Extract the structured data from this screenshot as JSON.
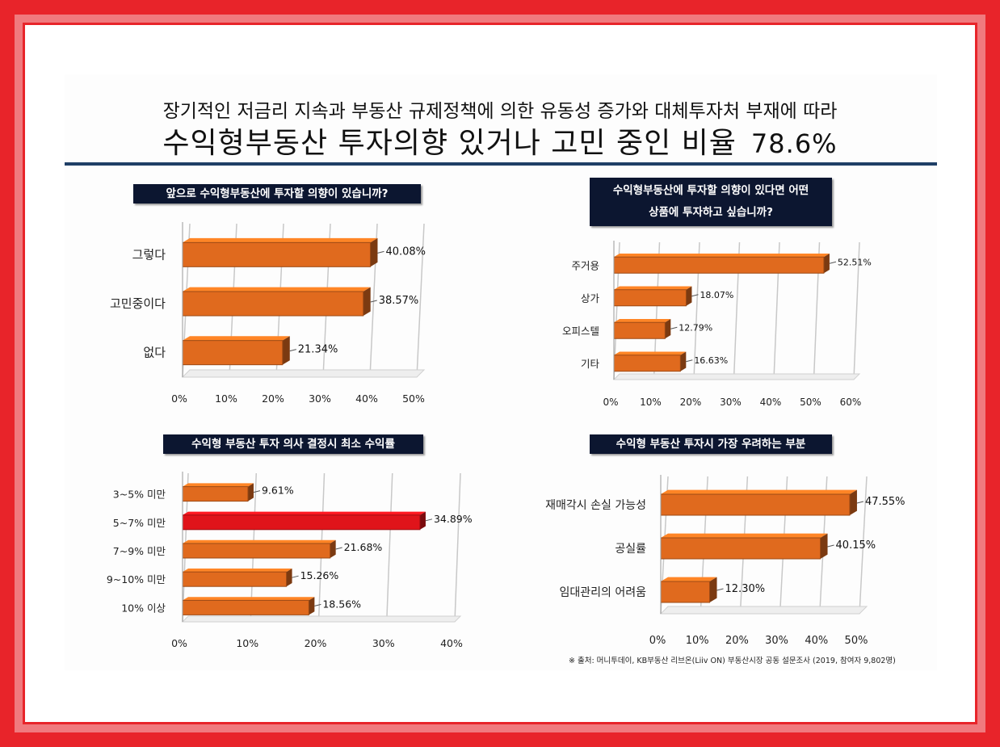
{
  "header": {
    "subtitle": "장기적인 저금리 지속과 부동산 규제정책에 의한 유동성 증가와 대체투자처 부재에 따라",
    "title": "수익형부동산 투자의향 있거나 고민 중인 비율",
    "title_pct": "78.6%"
  },
  "colors": {
    "bar": "#e06a1e",
    "bar_highlight": "#e0141a",
    "question_bg": "#0c1630"
  },
  "source": "※ 출처: 머니투데이,  KB부동산 리브온(Liiv ON) 부동산시장 공동 설문조사 (2019, 참여자 9,802명)",
  "chart_data": [
    {
      "type": "bar",
      "orientation": "horizontal",
      "question": [
        "앞으로 수익형부동산에 투자할 의향이 있습니까?"
      ],
      "categories": [
        "그렇다",
        "고민중이다",
        "없다"
      ],
      "values": [
        40.08,
        38.57,
        21.34
      ],
      "labels": [
        "40.08%",
        "38.57%",
        "21.34%"
      ],
      "xlim": [
        0,
        50
      ],
      "ticks": [
        "0%",
        "10%",
        "20%",
        "30%",
        "40%",
        "50%"
      ]
    },
    {
      "type": "bar",
      "orientation": "horizontal",
      "question": [
        "수익형부동산에 투자할 의향이 있다면 어떤",
        "상품에 투자하고 싶습니까?"
      ],
      "categories": [
        "주거용",
        "상가",
        "오피스텔",
        "기타"
      ],
      "values": [
        52.51,
        18.07,
        12.79,
        16.63
      ],
      "labels": [
        "52.51%",
        "18.07%",
        "12.79%",
        "16.63%"
      ],
      "xlim": [
        0,
        60
      ],
      "ticks": [
        "0%",
        "10%",
        "20%",
        "30%",
        "40%",
        "50%",
        "60%"
      ]
    },
    {
      "type": "bar",
      "orientation": "horizontal",
      "question": [
        "수익형 부동산 투자 의사 결정시 최소 수익률"
      ],
      "categories": [
        "3~5% 미만",
        "5~7% 미만",
        "7~9% 미만",
        "9~10% 미만",
        "10% 이상"
      ],
      "values": [
        9.61,
        34.89,
        21.68,
        15.26,
        18.56
      ],
      "labels": [
        "9.61%",
        "34.89%",
        "21.68%",
        "15.26%",
        "18.56%"
      ],
      "highlight_index": 1,
      "xlim": [
        0,
        40
      ],
      "ticks": [
        "0%",
        "10%",
        "20%",
        "30%",
        "40%"
      ]
    },
    {
      "type": "bar",
      "orientation": "horizontal",
      "question": [
        "수익형 부동산 투자시 가장 우려하는 부분"
      ],
      "categories": [
        "재매각시 손실 가능성",
        "공실률",
        "임대관리의 어려움"
      ],
      "values": [
        47.55,
        40.15,
        12.3
      ],
      "labels": [
        "47.55%",
        "40.15%",
        "12.30%"
      ],
      "xlim": [
        0,
        50
      ],
      "ticks": [
        "0%",
        "10%",
        "20%",
        "30%",
        "40%",
        "50%"
      ]
    }
  ]
}
